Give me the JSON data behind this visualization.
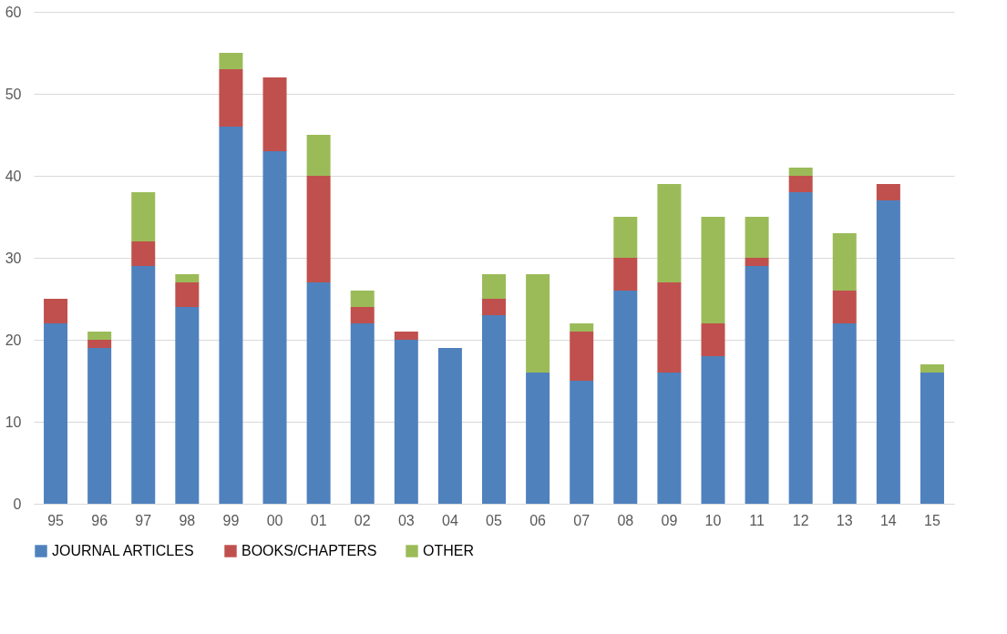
{
  "chart_data": {
    "type": "bar",
    "stacked": true,
    "categories": [
      "95",
      "96",
      "97",
      "98",
      "99",
      "00",
      "01",
      "02",
      "03",
      "04",
      "05",
      "06",
      "07",
      "08",
      "09",
      "10",
      "11",
      "12",
      "13",
      "14",
      "15"
    ],
    "series": [
      {
        "name": "JOURNAL ARTICLES",
        "color": "#4f81bd",
        "values": [
          22,
          19,
          29,
          24,
          46,
          43,
          27,
          22,
          20,
          19,
          23,
          16,
          15,
          26,
          16,
          18,
          29,
          38,
          22,
          37,
          16
        ]
      },
      {
        "name": "BOOKS/CHAPTERS",
        "color": "#c0504d",
        "values": [
          3,
          1,
          3,
          3,
          7,
          9,
          13,
          2,
          1,
          0,
          2,
          0,
          6,
          4,
          11,
          4,
          1,
          2,
          4,
          2,
          0
        ]
      },
      {
        "name": "OTHER",
        "color": "#9bbb59",
        "values": [
          0,
          1,
          6,
          1,
          2,
          0,
          5,
          2,
          0,
          0,
          3,
          12,
          1,
          5,
          12,
          13,
          5,
          1,
          7,
          0,
          1
        ]
      }
    ],
    "ylim": [
      0,
      60
    ],
    "yticks": [
      0,
      10,
      20,
      30,
      40,
      50,
      60
    ],
    "grid": "y",
    "legend": "bottom"
  }
}
